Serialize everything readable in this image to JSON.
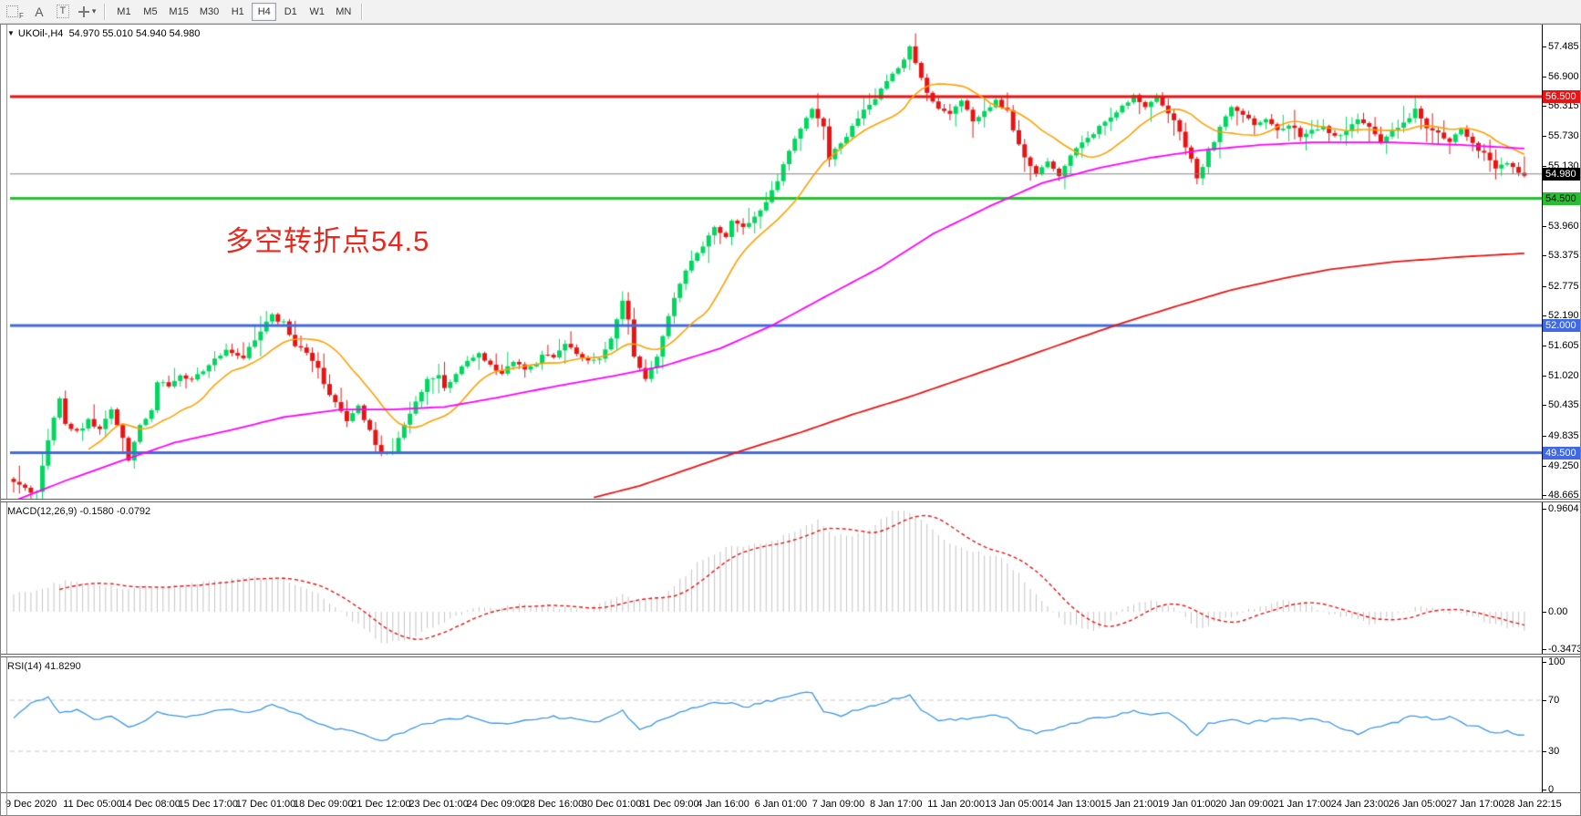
{
  "toolbar": {
    "tools": {
      "f": "F",
      "a": "A",
      "t": "T",
      "caret": "▾"
    },
    "timeframes": [
      {
        "label": "M1",
        "active": false
      },
      {
        "label": "M5",
        "active": false
      },
      {
        "label": "M15",
        "active": false
      },
      {
        "label": "M30",
        "active": false
      },
      {
        "label": "H1",
        "active": false
      },
      {
        "label": "H4",
        "active": true
      },
      {
        "label": "D1",
        "active": false
      },
      {
        "label": "W1",
        "active": false
      },
      {
        "label": "MN",
        "active": false
      }
    ]
  },
  "chart": {
    "dropdown_glyph": "▼",
    "symbol_period": "UKOil-,H4",
    "ohlc_text": "54.970 55.010 54.940 54.980",
    "annotation": "多空转折点54.5"
  },
  "main_axis": {
    "ticks": [
      "57.485",
      "56.900",
      "56.315",
      "55.730",
      "55.130",
      "53.960",
      "53.375",
      "52.775",
      "52.190",
      "51.605",
      "51.020",
      "50.435",
      "49.835",
      "49.250",
      "48.665"
    ],
    "badges": [
      {
        "t": "56.500",
        "p": 56.5,
        "bg": "#e81414",
        "fg": "#ffffff"
      },
      {
        "t": "54.980",
        "p": 54.98,
        "bg": "#000000",
        "fg": "#ffffff"
      },
      {
        "t": "54.500",
        "p": 54.5,
        "bg": "#28be32",
        "fg": "#000000"
      },
      {
        "t": "52.000",
        "p": 52.0,
        "bg": "#4169e1",
        "fg": "#ffffff"
      },
      {
        "t": "49.500",
        "p": 49.5,
        "bg": "#4169e1",
        "fg": "#ffffff"
      }
    ]
  },
  "macd": {
    "label": "MACD(12,26,9)",
    "value_main": "-0.1580",
    "value_signal": "-0.0792",
    "ticks": [
      "0.9604",
      "0.00",
      "-0.3473"
    ]
  },
  "rsi": {
    "label": "RSI(14)",
    "value": "41.8290",
    "ticks": [
      "100",
      "70",
      "30",
      "0"
    ]
  },
  "time_axis": [
    "9 Dec 2020",
    "11 Dec 05:00",
    "14 Dec 08:00",
    "15 Dec 17:00",
    "17 Dec 01:00",
    "18 Dec 09:00",
    "21 Dec 12:00",
    "23 Dec 01:00",
    "24 Dec 09:00",
    "28 Dec 16:00",
    "30 Dec 01:00",
    "31 Dec 09:00",
    "4 Jan 16:00",
    "6 Jan 01:00",
    "7 Jan 09:00",
    "8 Jan 17:00",
    "11 Jan 20:00",
    "13 Jan 05:00",
    "14 Jan 13:00",
    "15 Jan 21:00",
    "19 Jan 01:00",
    "20 Jan 09:00",
    "21 Jan 17:00",
    "24 Jan 23:00",
    "26 Jan 05:00",
    "27 Jan 17:00",
    "28 Jan 22:15"
  ],
  "chart_data": {
    "type": "candlestick",
    "symbol": "UKOil-",
    "timeframe": "H4",
    "ohlc": {
      "open": 54.97,
      "high": 55.01,
      "low": 54.94,
      "close": 54.98
    },
    "bars": 264,
    "price_axis_range": [
      48.665,
      57.485
    ],
    "hlines": [
      {
        "p": 56.5,
        "c": "#e81414",
        "w": 3
      },
      {
        "p": 54.98,
        "c": "#808080",
        "w": 1
      },
      {
        "p": 54.5,
        "c": "#28be32",
        "w": 3
      },
      {
        "p": 52.0,
        "c": "#4169e1",
        "w": 3
      },
      {
        "p": 49.5,
        "c": "#4169e1",
        "w": 3
      }
    ],
    "close_anchors": [
      [
        0,
        48.95
      ],
      [
        2,
        48.8
      ],
      [
        4,
        48.72
      ],
      [
        6,
        49.75
      ],
      [
        8,
        50.55
      ],
      [
        9,
        50.05
      ],
      [
        11,
        49.9
      ],
      [
        13,
        50.15
      ],
      [
        15,
        49.95
      ],
      [
        17,
        50.35
      ],
      [
        19,
        49.8
      ],
      [
        20,
        49.35
      ],
      [
        22,
        50.05
      ],
      [
        24,
        50.3
      ],
      [
        25,
        50.9
      ],
      [
        27,
        50.8
      ],
      [
        29,
        51.0
      ],
      [
        31,
        50.9
      ],
      [
        34,
        51.2
      ],
      [
        37,
        51.55
      ],
      [
        40,
        51.4
      ],
      [
        42,
        51.7
      ],
      [
        45,
        52.2
      ],
      [
        47,
        52.05
      ],
      [
        49,
        51.6
      ],
      [
        51,
        51.5
      ],
      [
        53,
        51.15
      ],
      [
        55,
        50.6
      ],
      [
        57,
        50.3
      ],
      [
        58,
        50.15
      ],
      [
        60,
        50.45
      ],
      [
        62,
        49.9
      ],
      [
        64,
        49.45
      ],
      [
        66,
        49.5
      ],
      [
        68,
        50.05
      ],
      [
        70,
        50.5
      ],
      [
        72,
        50.9
      ],
      [
        74,
        51.05
      ],
      [
        75,
        50.8
      ],
      [
        77,
        51.0
      ],
      [
        79,
        51.3
      ],
      [
        81,
        51.45
      ],
      [
        83,
        51.2
      ],
      [
        85,
        51.05
      ],
      [
        87,
        51.3
      ],
      [
        89,
        51.1
      ],
      [
        91,
        51.25
      ],
      [
        92,
        51.45
      ],
      [
        94,
        51.35
      ],
      [
        96,
        51.6
      ],
      [
        98,
        51.45
      ],
      [
        100,
        51.35
      ],
      [
        102,
        51.3
      ],
      [
        104,
        51.75
      ],
      [
        106,
        52.5
      ],
      [
        107,
        52.15
      ],
      [
        108,
        51.35
      ],
      [
        110,
        50.95
      ],
      [
        112,
        51.35
      ],
      [
        114,
        52.2
      ],
      [
        116,
        52.8
      ],
      [
        118,
        53.3
      ],
      [
        120,
        53.6
      ],
      [
        122,
        53.95
      ],
      [
        124,
        53.75
      ],
      [
        125,
        54.1
      ],
      [
        127,
        53.9
      ],
      [
        129,
        54.15
      ],
      [
        131,
        54.4
      ],
      [
        133,
        54.85
      ],
      [
        135,
        55.4
      ],
      [
        137,
        55.85
      ],
      [
        139,
        56.3
      ],
      [
        141,
        55.9
      ],
      [
        142,
        55.3
      ],
      [
        144,
        55.55
      ],
      [
        146,
        55.9
      ],
      [
        148,
        56.2
      ],
      [
        150,
        56.5
      ],
      [
        152,
        56.8
      ],
      [
        154,
        57.1
      ],
      [
        156,
        57.45
      ],
      [
        157,
        57.15
      ],
      [
        159,
        56.6
      ],
      [
        161,
        56.3
      ],
      [
        163,
        56.2
      ],
      [
        165,
        56.4
      ],
      [
        167,
        56.0
      ],
      [
        169,
        56.2
      ],
      [
        171,
        56.4
      ],
      [
        173,
        56.25
      ],
      [
        174,
        55.8
      ],
      [
        176,
        55.3
      ],
      [
        178,
        55.0
      ],
      [
        180,
        55.2
      ],
      [
        182,
        54.95
      ],
      [
        184,
        55.3
      ],
      [
        186,
        55.6
      ],
      [
        188,
        55.8
      ],
      [
        190,
        56.0
      ],
      [
        191,
        56.1
      ],
      [
        193,
        56.3
      ],
      [
        195,
        56.5
      ],
      [
        197,
        56.3
      ],
      [
        199,
        56.45
      ],
      [
        201,
        56.2
      ],
      [
        203,
        55.8
      ],
      [
        205,
        55.3
      ],
      [
        206,
        54.85
      ],
      [
        208,
        55.4
      ],
      [
        210,
        55.9
      ],
      [
        212,
        56.3
      ],
      [
        214,
        56.1
      ],
      [
        216,
        55.95
      ],
      [
        218,
        56.1
      ],
      [
        220,
        55.85
      ],
      [
        222,
        55.95
      ],
      [
        224,
        55.75
      ],
      [
        226,
        55.85
      ],
      [
        228,
        55.95
      ],
      [
        230,
        55.7
      ],
      [
        232,
        55.85
      ],
      [
        234,
        56.05
      ],
      [
        236,
        55.9
      ],
      [
        238,
        55.65
      ],
      [
        240,
        55.8
      ],
      [
        242,
        55.95
      ],
      [
        244,
        56.3
      ],
      [
        246,
        55.9
      ],
      [
        248,
        55.75
      ],
      [
        250,
        55.6
      ],
      [
        252,
        55.85
      ],
      [
        254,
        55.55
      ],
      [
        256,
        55.35
      ],
      [
        258,
        55.05
      ],
      [
        260,
        55.2
      ],
      [
        262,
        55.05
      ],
      [
        263,
        54.98
      ]
    ],
    "ma": {
      "orange_period": 14,
      "magenta_anchors": [
        [
          0,
          48.55
        ],
        [
          9,
          48.95
        ],
        [
          19,
          49.35
        ],
        [
          28,
          49.7
        ],
        [
          38,
          49.95
        ],
        [
          47,
          50.2
        ],
        [
          57,
          50.35
        ],
        [
          66,
          50.35
        ],
        [
          75,
          50.4
        ],
        [
          85,
          50.6
        ],
        [
          94,
          50.8
        ],
        [
          104,
          51.0
        ],
        [
          113,
          51.2
        ],
        [
          123,
          51.55
        ],
        [
          132,
          52.0
        ],
        [
          141,
          52.55
        ],
        [
          151,
          53.15
        ],
        [
          160,
          53.8
        ],
        [
          170,
          54.35
        ],
        [
          179,
          54.8
        ],
        [
          189,
          55.1
        ],
        [
          198,
          55.3
        ],
        [
          207,
          55.45
        ],
        [
          217,
          55.55
        ],
        [
          226,
          55.6
        ],
        [
          240,
          55.6
        ],
        [
          252,
          55.55
        ],
        [
          263,
          55.48
        ]
      ],
      "red_anchors": [
        [
          101,
          48.62
        ],
        [
          109,
          48.85
        ],
        [
          118,
          49.2
        ],
        [
          127,
          49.55
        ],
        [
          137,
          49.9
        ],
        [
          146,
          50.25
        ],
        [
          156,
          50.6
        ],
        [
          165,
          50.95
        ],
        [
          174,
          51.3
        ],
        [
          184,
          51.7
        ],
        [
          193,
          52.05
        ],
        [
          203,
          52.4
        ],
        [
          212,
          52.7
        ],
        [
          222,
          52.95
        ],
        [
          229,
          53.1
        ],
        [
          240,
          53.25
        ],
        [
          252,
          53.35
        ],
        [
          263,
          53.42
        ]
      ]
    },
    "macd_anchors": [
      [
        0,
        0.15
      ],
      [
        9,
        0.28
      ],
      [
        19,
        0.22
      ],
      [
        28,
        0.24
      ],
      [
        38,
        0.3
      ],
      [
        45,
        0.32
      ],
      [
        52,
        0.2
      ],
      [
        58,
        -0.05
      ],
      [
        64,
        -0.28
      ],
      [
        68,
        -0.26
      ],
      [
        74,
        -0.12
      ],
      [
        80,
        0.02
      ],
      [
        87,
        0.06
      ],
      [
        94,
        0.05
      ],
      [
        100,
        0.02
      ],
      [
        106,
        0.18
      ],
      [
        109,
        0.1
      ],
      [
        113,
        0.14
      ],
      [
        119,
        0.45
      ],
      [
        124,
        0.6
      ],
      [
        130,
        0.62
      ],
      [
        136,
        0.75
      ],
      [
        140,
        0.85
      ],
      [
        143,
        0.7
      ],
      [
        147,
        0.72
      ],
      [
        151,
        0.85
      ],
      [
        154,
        0.96
      ],
      [
        157,
        0.9
      ],
      [
        160,
        0.75
      ],
      [
        164,
        0.62
      ],
      [
        168,
        0.55
      ],
      [
        172,
        0.52
      ],
      [
        175,
        0.35
      ],
      [
        179,
        0.1
      ],
      [
        183,
        -0.1
      ],
      [
        187,
        -0.18
      ],
      [
        190,
        -0.12
      ],
      [
        194,
        0.05
      ],
      [
        198,
        0.1
      ],
      [
        202,
        0.02
      ],
      [
        206,
        -0.15
      ],
      [
        209,
        -0.1
      ],
      [
        213,
        -0.02
      ],
      [
        217,
        0.05
      ],
      [
        221,
        0.1
      ],
      [
        224,
        0.08
      ],
      [
        228,
        0.0
      ],
      [
        232,
        -0.05
      ],
      [
        236,
        -0.12
      ],
      [
        240,
        -0.05
      ],
      [
        244,
        0.05
      ],
      [
        248,
        0.02
      ],
      [
        252,
        -0.02
      ],
      [
        256,
        -0.08
      ],
      [
        260,
        -0.14
      ],
      [
        263,
        -0.158
      ]
    ],
    "rsi_anchors": [
      [
        0,
        55
      ],
      [
        3,
        68
      ],
      [
        6,
        72
      ],
      [
        8,
        60
      ],
      [
        11,
        62
      ],
      [
        14,
        55
      ],
      [
        17,
        57
      ],
      [
        20,
        48
      ],
      [
        23,
        55
      ],
      [
        25,
        60
      ],
      [
        28,
        58
      ],
      [
        31,
        57
      ],
      [
        34,
        60
      ],
      [
        37,
        63
      ],
      [
        40,
        60
      ],
      [
        42,
        62
      ],
      [
        45,
        67
      ],
      [
        48,
        62
      ],
      [
        51,
        56
      ],
      [
        55,
        48
      ],
      [
        58,
        46
      ],
      [
        62,
        42
      ],
      [
        64,
        38
      ],
      [
        68,
        45
      ],
      [
        72,
        52
      ],
      [
        75,
        55
      ],
      [
        79,
        57
      ],
      [
        83,
        53
      ],
      [
        87,
        52
      ],
      [
        91,
        55
      ],
      [
        94,
        57
      ],
      [
        98,
        55
      ],
      [
        102,
        53
      ],
      [
        106,
        62
      ],
      [
        107,
        55
      ],
      [
        109,
        47
      ],
      [
        113,
        55
      ],
      [
        117,
        62
      ],
      [
        121,
        67
      ],
      [
        124,
        68
      ],
      [
        128,
        65
      ],
      [
        132,
        70
      ],
      [
        136,
        74
      ],
      [
        139,
        76
      ],
      [
        141,
        62
      ],
      [
        144,
        58
      ],
      [
        147,
        63
      ],
      [
        151,
        68
      ],
      [
        154,
        72
      ],
      [
        156,
        74
      ],
      [
        158,
        62
      ],
      [
        161,
        55
      ],
      [
        164,
        54
      ],
      [
        167,
        57
      ],
      [
        170,
        58
      ],
      [
        173,
        56
      ],
      [
        175,
        48
      ],
      [
        178,
        44
      ],
      [
        181,
        46
      ],
      [
        184,
        52
      ],
      [
        187,
        55
      ],
      [
        190,
        57
      ],
      [
        192,
        58
      ],
      [
        195,
        62
      ],
      [
        198,
        58
      ],
      [
        201,
        60
      ],
      [
        204,
        50
      ],
      [
        206,
        42
      ],
      [
        208,
        52
      ],
      [
        212,
        54
      ],
      [
        215,
        52
      ],
      [
        218,
        54
      ],
      [
        221,
        57
      ],
      [
        224,
        54
      ],
      [
        227,
        56
      ],
      [
        229,
        52
      ],
      [
        232,
        46
      ],
      [
        234,
        44
      ],
      [
        236,
        48
      ],
      [
        240,
        52
      ],
      [
        244,
        58
      ],
      [
        248,
        55
      ],
      [
        250,
        57
      ],
      [
        252,
        52
      ],
      [
        254,
        50
      ],
      [
        256,
        48
      ],
      [
        258,
        44
      ],
      [
        260,
        46
      ],
      [
        262,
        43
      ],
      [
        263,
        41.83
      ]
    ],
    "rsi_levels": [
      70,
      30
    ],
    "colors": {
      "up": "#00d75f",
      "down": "#e81414",
      "orange": "#ffa000",
      "magenta": "#ff00ff",
      "red_ma": "#e81414",
      "hist": "#c4c4c4",
      "signal": "#e81414",
      "rsi": "#3b96e8",
      "level": "#c9c9c9"
    }
  }
}
